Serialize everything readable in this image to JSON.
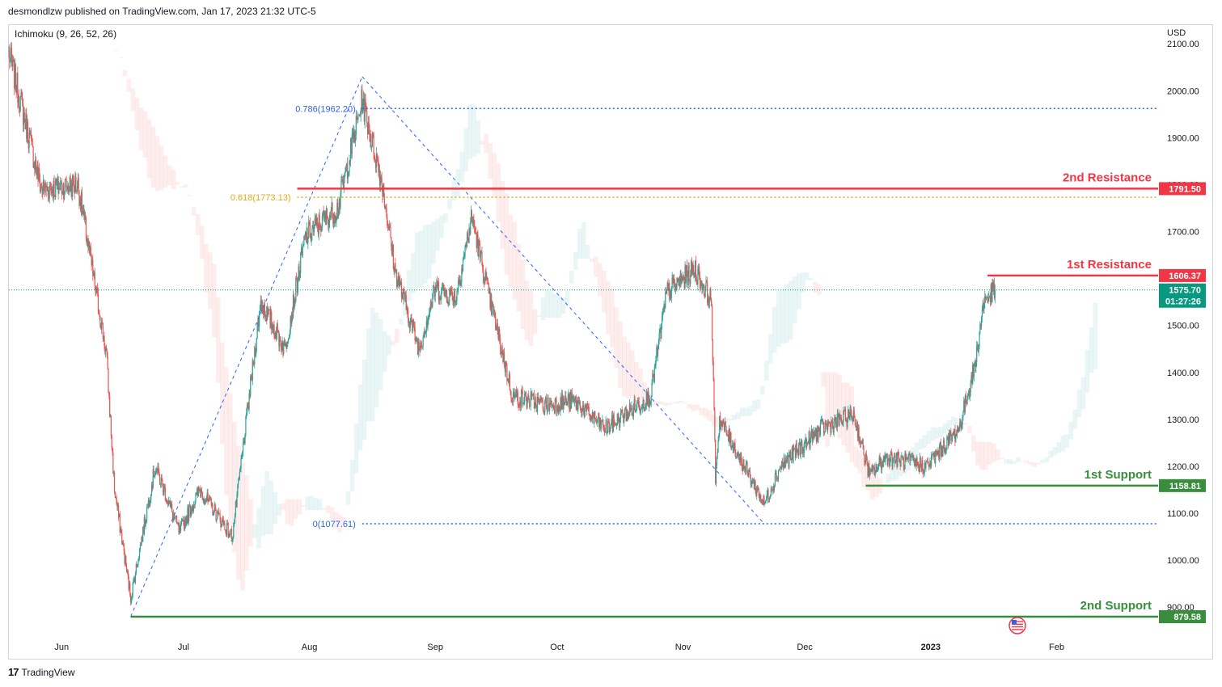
{
  "header": {
    "text": "desmondlzw published on TradingView.com, Jan 17, 2023 21:32 UTC-5"
  },
  "indicator": {
    "label": "Ichimoku (9, 26, 52, 26)"
  },
  "footer": {
    "brand": "TradingView",
    "logo": "17"
  },
  "colors": {
    "up": "#26a69a",
    "down": "#ef5350",
    "resistance": "#f23645",
    "support": "#388e3c",
    "fib": "#2962ff",
    "fib618": "#e6a817",
    "last": "#089981"
  },
  "chart_data": {
    "type": "candlestick",
    "title": "",
    "currency": "USD",
    "ylim": [
      840,
      2140
    ],
    "y_ticks": [
      "2100.00",
      "2000.00",
      "1900.00",
      "1800.00",
      "1700.00",
      "1600.00",
      "1500.00",
      "1400.00",
      "1300.00",
      "1200.00",
      "1100.00",
      "1000.00",
      "900.00"
    ],
    "y_tick_values": [
      2100,
      2000,
      1900,
      1800,
      1700,
      1600,
      1500,
      1400,
      1300,
      1200,
      1100,
      1000,
      900
    ],
    "x_range": [
      "2022-05-19",
      "2023-02-26"
    ],
    "x_ticks": [
      {
        "label": "Jun",
        "date": "2022-06-01"
      },
      {
        "label": "Jul",
        "date": "2022-07-01"
      },
      {
        "label": "Aug",
        "date": "2022-08-01"
      },
      {
        "label": "Sep",
        "date": "2022-09-01"
      },
      {
        "label": "Oct",
        "date": "2022-10-01"
      },
      {
        "label": "Nov",
        "date": "2022-11-01"
      },
      {
        "label": "Dec",
        "date": "2022-12-01"
      },
      {
        "label": "2023",
        "date": "2023-01-01"
      },
      {
        "label": "Feb",
        "date": "2023-02-01"
      }
    ],
    "price_anchors": [
      {
        "date": "2022-05-19",
        "close": 2080
      },
      {
        "date": "2022-05-27",
        "close": 1790
      },
      {
        "date": "2022-06-05",
        "close": 1800
      },
      {
        "date": "2022-06-12",
        "close": 1440
      },
      {
        "date": "2022-06-14",
        "close": 1150
      },
      {
        "date": "2022-06-18",
        "close": 920
      },
      {
        "date": "2022-06-24",
        "close": 1200
      },
      {
        "date": "2022-06-30",
        "close": 1060
      },
      {
        "date": "2022-07-05",
        "close": 1150
      },
      {
        "date": "2022-07-13",
        "close": 1050
      },
      {
        "date": "2022-07-20",
        "close": 1550
      },
      {
        "date": "2022-07-26",
        "close": 1450
      },
      {
        "date": "2022-07-31",
        "close": 1690
      },
      {
        "date": "2022-08-08",
        "close": 1750
      },
      {
        "date": "2022-08-14",
        "close": 1980
      },
      {
        "date": "2022-08-19",
        "close": 1800
      },
      {
        "date": "2022-08-22",
        "close": 1620
      },
      {
        "date": "2022-08-28",
        "close": 1450
      },
      {
        "date": "2022-09-01",
        "close": 1580
      },
      {
        "date": "2022-09-06",
        "close": 1560
      },
      {
        "date": "2022-09-10",
        "close": 1730
      },
      {
        "date": "2022-09-14",
        "close": 1570
      },
      {
        "date": "2022-09-20",
        "close": 1350
      },
      {
        "date": "2022-09-28",
        "close": 1330
      },
      {
        "date": "2022-10-05",
        "close": 1340
      },
      {
        "date": "2022-10-13",
        "close": 1280
      },
      {
        "date": "2022-10-24",
        "close": 1350
      },
      {
        "date": "2022-10-28",
        "close": 1570
      },
      {
        "date": "2022-11-04",
        "close": 1620
      },
      {
        "date": "2022-11-08",
        "close": 1550
      },
      {
        "date": "2022-11-09",
        "close": 1180
      },
      {
        "date": "2022-11-10",
        "close": 1300
      },
      {
        "date": "2022-11-21",
        "close": 1120
      },
      {
        "date": "2022-11-25",
        "close": 1200
      },
      {
        "date": "2022-12-05",
        "close": 1280
      },
      {
        "date": "2022-12-13",
        "close": 1310
      },
      {
        "date": "2022-12-17",
        "close": 1180
      },
      {
        "date": "2022-12-21",
        "close": 1220
      },
      {
        "date": "2022-12-31",
        "close": 1200
      },
      {
        "date": "2023-01-08",
        "close": 1280
      },
      {
        "date": "2023-01-12",
        "close": 1420
      },
      {
        "date": "2023-01-14",
        "close": 1550
      },
      {
        "date": "2023-01-17",
        "close": 1575.7
      }
    ],
    "levels": [
      {
        "name": "2nd Resistance",
        "value": 1791.5,
        "label": "1791.50",
        "kind": "resistance",
        "from": "2022-07-29"
      },
      {
        "name": "1st Resistance",
        "value": 1606.37,
        "label": "1606.37",
        "kind": "resistance",
        "from": "2023-01-15"
      },
      {
        "name": "1st Support",
        "value": 1158.81,
        "label": "1158.81",
        "kind": "support",
        "from": "2022-12-16"
      },
      {
        "name": "2nd Support",
        "value": 879.58,
        "label": "879.58",
        "kind": "support",
        "from": "2022-06-18"
      }
    ],
    "fibonacci": [
      {
        "ratio": "0.786",
        "value": 1962.2,
        "label": "0.786(1962.20)"
      },
      {
        "ratio": "0.618",
        "value": 1773.13,
        "label": "0.618(1773.13)"
      },
      {
        "ratio": "0",
        "value": 1077.61,
        "label": "0(1077.61)"
      }
    ],
    "last_price": {
      "value": 1575.7,
      "label": "1575.70",
      "countdown": "01:27:26"
    },
    "trend_lines": [
      {
        "from": {
          "date": "2022-06-18",
          "value": 880
        },
        "to": {
          "date": "2022-08-14",
          "value": 2030
        }
      },
      {
        "from": {
          "date": "2022-08-14",
          "value": 2030
        },
        "to": {
          "date": "2022-11-21",
          "value": 1077.61
        }
      }
    ],
    "ichimoku": {
      "params": [
        9,
        26,
        52,
        26
      ]
    }
  }
}
